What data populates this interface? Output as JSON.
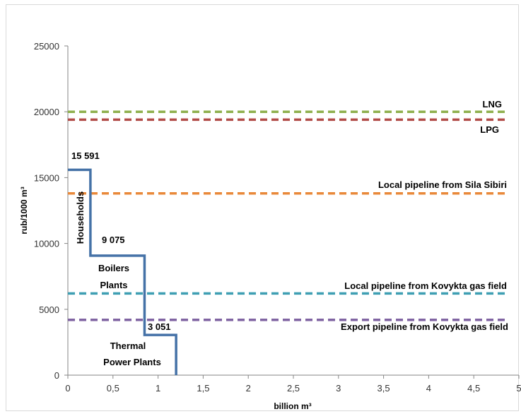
{
  "chart_data": {
    "type": "line",
    "xlabel": "billion m³",
    "ylabel": "rub/1000 m³",
    "xlim": [
      0,
      5
    ],
    "ylim": [
      0,
      25000
    ],
    "x_ticks": [
      "0",
      "0,5",
      "1",
      "1,5",
      "2",
      "2,5",
      "3",
      "3,5",
      "4",
      "4,5",
      "5"
    ],
    "y_ticks": [
      "0",
      "5000",
      "10000",
      "15000",
      "20000",
      "25000"
    ],
    "grid": false,
    "demand_curve": {
      "color": "#4572a7",
      "points": [
        [
          0,
          15591
        ],
        [
          0.25,
          15591
        ],
        [
          0.25,
          9075
        ],
        [
          0.85,
          9075
        ],
        [
          0.85,
          3051
        ],
        [
          1.2,
          3051
        ],
        [
          1.2,
          0
        ]
      ],
      "segments": [
        {
          "label": "Households",
          "value_label": "15 591"
        },
        {
          "label": "Boilers Plants",
          "value_label": "9 075"
        },
        {
          "label": "Thermal Power Plants",
          "value_label": "3 051"
        }
      ]
    },
    "series": [
      {
        "name": "LNG",
        "value": 20000,
        "color": "#8fb04e"
      },
      {
        "name": "LPG",
        "value": 19400,
        "color": "#b14a47"
      },
      {
        "name": "Local pipeline from Sila Sibiri",
        "value": 13800,
        "color": "#e9893a"
      },
      {
        "name": "Local pipeline from Kovykta gas field",
        "value": 6200,
        "color": "#3f9fb3"
      },
      {
        "name": "Export pipeline from Kovykta gas field",
        "value": 4200,
        "color": "#8064a2"
      }
    ]
  }
}
